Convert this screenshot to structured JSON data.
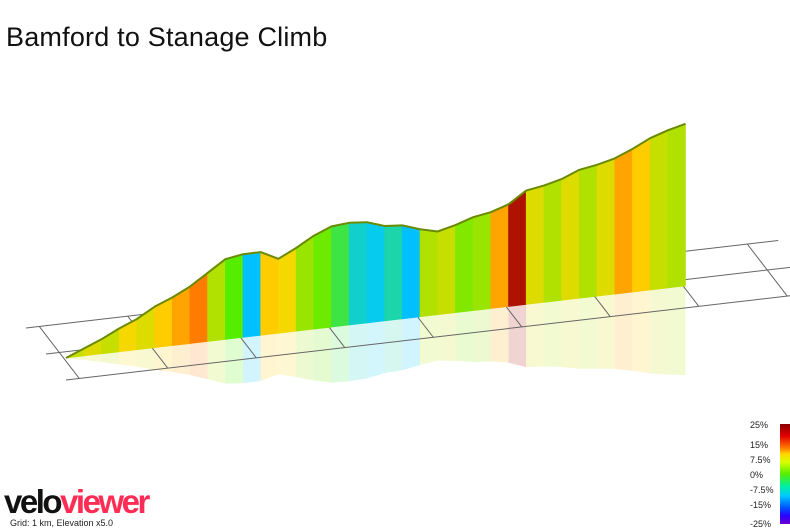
{
  "title": "Bamford to Stanage Climb",
  "legend": {
    "scale_labels": [
      "25%",
      "15%",
      "7.5%",
      "0%",
      "-7.5%",
      "-15%",
      "-25%"
    ]
  },
  "footer": {
    "logo_part1": "velo",
    "logo_part2": "viewer",
    "note": "Grid: 1 km, Elevation x5.0",
    "logo_colors": {
      "velo": "#111111",
      "viewer": "#ff2d55"
    }
  },
  "chart_data": {
    "type": "area",
    "title": "Bamford to Stanage Climb",
    "xlabel": "",
    "ylabel": "",
    "grid_step_km": 1,
    "elevation_exaggeration": 5.0,
    "x_unit": "km",
    "xlim": [
      0,
      7
    ],
    "colorscale": {
      "stops": [
        -25,
        -15,
        -7.5,
        0,
        7.5,
        15,
        25
      ],
      "colors": [
        "#6a00cc",
        "#0050ff",
        "#00c8ff",
        "#55ee00",
        "#ffd600",
        "#ff4000",
        "#8a0000"
      ]
    },
    "profile": {
      "x": [
        0.0,
        0.2,
        0.4,
        0.6,
        0.8,
        1.0,
        1.2,
        1.4,
        1.6,
        1.8,
        2.0,
        2.2,
        2.4,
        2.6,
        2.8,
        3.0,
        3.2,
        3.4,
        3.6,
        3.8,
        4.0,
        4.2,
        4.4,
        4.6,
        4.8,
        5.0,
        5.2,
        5.4,
        5.6,
        5.8,
        6.0,
        6.2,
        6.4,
        6.6,
        6.8,
        7.0
      ],
      "elevation": [
        0,
        10,
        20,
        32,
        42,
        56,
        66,
        78,
        94,
        110,
        114,
        114,
        102,
        114,
        128,
        138,
        140,
        138,
        130,
        128,
        120,
        114,
        120,
        128,
        132,
        140,
        156,
        160,
        166,
        176,
        180,
        186,
        196,
        208,
        216,
        222
      ],
      "gradient": [
        6,
        5,
        6,
        5,
        7,
        6,
        8,
        10,
        12,
        4,
        0,
        -8,
        8,
        7,
        3,
        1,
        -2,
        -6,
        -7,
        -5,
        -8,
        4,
        5,
        2,
        3,
        10,
        22,
        6,
        4,
        6,
        4,
        6,
        10,
        8,
        5,
        4
      ]
    }
  }
}
